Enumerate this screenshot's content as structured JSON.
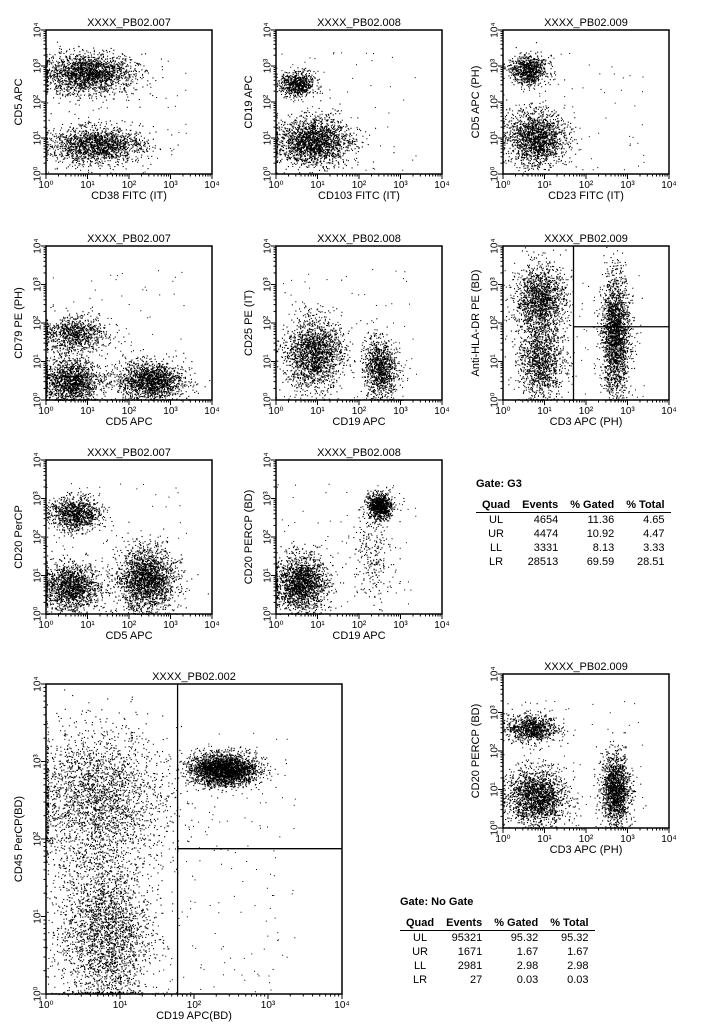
{
  "chart_data": [
    {
      "type": "scatter",
      "title": "XXXX_PB02.007",
      "xlabel": "CD38 FITC (IT)",
      "ylabel": "CD5 APC",
      "xscale": "log",
      "yscale": "log",
      "xlim": [
        1,
        10000
      ],
      "ylim": [
        1,
        10000
      ],
      "xticks": [
        "10⁰",
        "10¹",
        "10²",
        "10³",
        "10⁴"
      ],
      "yticks": [
        "10⁰",
        "10¹",
        "10²",
        "10³",
        "10⁴"
      ],
      "clusters": [
        {
          "cx": 1.0,
          "cy": 2.8,
          "sx": 0.55,
          "sy": 0.28,
          "n": 0.7
        },
        {
          "cx": 1.2,
          "cy": 0.8,
          "sx": 0.55,
          "sy": 0.25,
          "n": 0.6
        }
      ],
      "quadrants": null
    },
    {
      "type": "scatter",
      "title": "XXXX_PB02.008",
      "xlabel": "CD103 FITC (IT)",
      "ylabel": "CD19 APC",
      "xscale": "log",
      "yscale": "log",
      "xlim": [
        1,
        10000
      ],
      "ylim": [
        1,
        10000
      ],
      "xticks": [
        "10⁰",
        "10¹",
        "10²",
        "10³",
        "10⁴"
      ],
      "yticks": [
        "10⁰",
        "10¹",
        "10²",
        "10³",
        "10⁴"
      ],
      "clusters": [
        {
          "cx": 0.5,
          "cy": 2.5,
          "sx": 0.2,
          "sy": 0.18,
          "n": 0.25
        },
        {
          "cx": 0.9,
          "cy": 0.9,
          "sx": 0.45,
          "sy": 0.32,
          "n": 0.7
        }
      ],
      "quadrants": null
    },
    {
      "type": "scatter",
      "title": "XXXX_PB02.009",
      "xlabel": "CD23 FITC (IT)",
      "ylabel": "CD5 APC (PH)",
      "xscale": "log",
      "yscale": "log",
      "xlim": [
        1,
        10000
      ],
      "ylim": [
        1,
        10000
      ],
      "xticks": [
        "10⁰",
        "10¹",
        "10²",
        "10³",
        "10⁴"
      ],
      "yticks": [
        "10⁰",
        "10¹",
        "10²",
        "10³",
        "10⁴"
      ],
      "clusters": [
        {
          "cx": 0.6,
          "cy": 2.9,
          "sx": 0.22,
          "sy": 0.2,
          "n": 0.3
        },
        {
          "cx": 0.8,
          "cy": 1.0,
          "sx": 0.35,
          "sy": 0.38,
          "n": 0.6
        }
      ],
      "quadrants": null
    },
    {
      "type": "scatter",
      "title": "XXXX_PB02.007",
      "xlabel": "CD5 APC",
      "ylabel": "CD79 PE (PH)",
      "xscale": "log",
      "yscale": "log",
      "xlim": [
        1,
        10000
      ],
      "ylim": [
        1,
        10000
      ],
      "xticks": [
        "10⁰",
        "10¹",
        "10²",
        "10³",
        "10⁴"
      ],
      "yticks": [
        "10⁰",
        "10¹",
        "10²",
        "10³",
        "10⁴"
      ],
      "clusters": [
        {
          "cx": 0.7,
          "cy": 1.7,
          "sx": 0.4,
          "sy": 0.25,
          "n": 0.3
        },
        {
          "cx": 0.6,
          "cy": 0.5,
          "sx": 0.35,
          "sy": 0.28,
          "n": 0.5
        },
        {
          "cx": 2.5,
          "cy": 0.5,
          "sx": 0.4,
          "sy": 0.25,
          "n": 0.55
        }
      ],
      "quadrants": null
    },
    {
      "type": "scatter",
      "title": "XXXX_PB02.008",
      "xlabel": "CD19 APC",
      "ylabel": "CD25 PE (IT)",
      "xscale": "log",
      "yscale": "log",
      "xlim": [
        1,
        10000
      ],
      "ylim": [
        1,
        10000
      ],
      "xticks": [
        "10⁰",
        "10¹",
        "10²",
        "10³",
        "10⁴"
      ],
      "yticks": [
        "10⁰",
        "10¹",
        "10²",
        "10³",
        "10⁴"
      ],
      "clusters": [
        {
          "cx": 0.9,
          "cy": 1.2,
          "sx": 0.35,
          "sy": 0.45,
          "n": 0.6
        },
        {
          "cx": 2.5,
          "cy": 0.8,
          "sx": 0.2,
          "sy": 0.4,
          "n": 0.35
        }
      ],
      "quadrants": null
    },
    {
      "type": "scatter",
      "title": "XXXX_PB02.009",
      "xlabel": "CD3 APC (PH)",
      "ylabel": "Anti-HLA-DR PE (BD)",
      "xscale": "log",
      "yscale": "log",
      "xlim": [
        1,
        10000
      ],
      "ylim": [
        1,
        10000
      ],
      "xticks": [
        "10⁰",
        "10¹",
        "10²",
        "10³",
        "10⁴"
      ],
      "yticks": [
        "10⁰",
        "10¹",
        "10²",
        "10³",
        "10⁴"
      ],
      "clusters": [
        {
          "cx": 0.9,
          "cy": 2.6,
          "sx": 0.3,
          "sy": 0.45,
          "n": 0.5
        },
        {
          "cx": 0.9,
          "cy": 1.0,
          "sx": 0.28,
          "sy": 0.5,
          "n": 0.4
        },
        {
          "cx": 2.7,
          "cy": 1.7,
          "sx": 0.17,
          "sy": 0.75,
          "n": 0.7
        }
      ],
      "quadrants": {
        "x": 50,
        "y": 80
      }
    },
    {
      "type": "scatter",
      "title": "XXXX_PB02.007",
      "xlabel": "CD5 APC",
      "ylabel": "CD20 PerCP",
      "xscale": "log",
      "yscale": "log",
      "xlim": [
        1,
        10000
      ],
      "ylim": [
        1,
        10000
      ],
      "xticks": [
        "10⁰",
        "10¹",
        "10²",
        "10³",
        "10⁴"
      ],
      "yticks": [
        "10⁰",
        "10¹",
        "10²",
        "10³",
        "10⁴"
      ],
      "clusters": [
        {
          "cx": 0.7,
          "cy": 2.6,
          "sx": 0.3,
          "sy": 0.22,
          "n": 0.35
        },
        {
          "cx": 0.6,
          "cy": 0.7,
          "sx": 0.35,
          "sy": 0.3,
          "n": 0.5
        },
        {
          "cx": 2.4,
          "cy": 0.9,
          "sx": 0.35,
          "sy": 0.4,
          "n": 0.7
        }
      ],
      "quadrants": null
    },
    {
      "type": "scatter",
      "title": "XXXX_PB02.008",
      "xlabel": "CD19 APC",
      "ylabel": "CD20 PERCP (BD)",
      "xscale": "log",
      "yscale": "log",
      "xlim": [
        1,
        10000
      ],
      "ylim": [
        1,
        10000
      ],
      "xticks": [
        "10⁰",
        "10¹",
        "10²",
        "10³",
        "10⁴"
      ],
      "yticks": [
        "10⁰",
        "10¹",
        "10²",
        "10³",
        "10⁴"
      ],
      "clusters": [
        {
          "cx": 0.6,
          "cy": 0.8,
          "sx": 0.3,
          "sy": 0.35,
          "n": 0.6
        },
        {
          "cx": 2.5,
          "cy": 2.8,
          "sx": 0.15,
          "sy": 0.17,
          "n": 0.3
        },
        {
          "cx": 2.3,
          "cy": 1.5,
          "sx": 0.25,
          "sy": 0.6,
          "n": 0.08
        }
      ],
      "quadrants": null
    },
    {
      "type": "scatter",
      "title": "XXXX_PB02.002",
      "xlabel": "CD19 APC(BD)",
      "ylabel": "CD45 PerCP(BD)",
      "xscale": "log",
      "yscale": "log",
      "xlim": [
        1,
        10000
      ],
      "ylim": [
        1,
        10000
      ],
      "xticks": [
        "10⁰",
        "10¹",
        "10²",
        "10³",
        "10⁴"
      ],
      "yticks": [
        "10⁰",
        "10¹",
        "10²",
        "10³",
        "10⁴"
      ],
      "clusters": [
        {
          "cx": 0.7,
          "cy": 2.5,
          "sx": 0.45,
          "sy": 0.45,
          "n": 1.0
        },
        {
          "cx": 2.4,
          "cy": 2.9,
          "sx": 0.22,
          "sy": 0.1,
          "n": 0.35
        },
        {
          "cx": 0.8,
          "cy": 0.8,
          "sx": 0.3,
          "sy": 0.5,
          "n": 0.35
        }
      ],
      "quadrants": {
        "x": 60,
        "y": 75
      }
    },
    {
      "type": "scatter",
      "title": "XXXX_PB02.009",
      "xlabel": "CD3 APC (PH)",
      "ylabel": "CD20 PERCP (BD)",
      "xscale": "log",
      "yscale": "log",
      "xlim": [
        1,
        10000
      ],
      "ylim": [
        1,
        10000
      ],
      "xticks": [
        "10⁰",
        "10¹",
        "10²",
        "10³",
        "10⁴"
      ],
      "yticks": [
        "10⁰",
        "10¹",
        "10²",
        "10³",
        "10⁴"
      ],
      "clusters": [
        {
          "cx": 0.7,
          "cy": 2.6,
          "sx": 0.3,
          "sy": 0.18,
          "n": 0.3
        },
        {
          "cx": 0.8,
          "cy": 0.8,
          "sx": 0.35,
          "sy": 0.35,
          "n": 0.6
        },
        {
          "cx": 2.7,
          "cy": 1.0,
          "sx": 0.17,
          "sy": 0.45,
          "n": 0.5
        }
      ],
      "quadrants": null
    }
  ],
  "stats_tables": [
    {
      "gate": "Gate: G3",
      "columns": [
        "Quad",
        "Events",
        "% Gated",
        "% Total"
      ],
      "rows": [
        [
          "UL",
          "4654",
          "11.36",
          "4.65"
        ],
        [
          "UR",
          "4474",
          "10.92",
          "4.47"
        ],
        [
          "LL",
          "3331",
          "8.13",
          "3.33"
        ],
        [
          "LR",
          "28513",
          "69.59",
          "28.51"
        ]
      ]
    },
    {
      "gate": "Gate: No Gate",
      "columns": [
        "Quad",
        "Events",
        "% Gated",
        "% Total"
      ],
      "rows": [
        [
          "UL",
          "95321",
          "95.32",
          "95.32"
        ],
        [
          "UR",
          "1671",
          "1.67",
          "1.67"
        ],
        [
          "LL",
          "2981",
          "2.98",
          "2.98"
        ],
        [
          "LR",
          "27",
          "0.03",
          "0.03"
        ]
      ]
    }
  ]
}
